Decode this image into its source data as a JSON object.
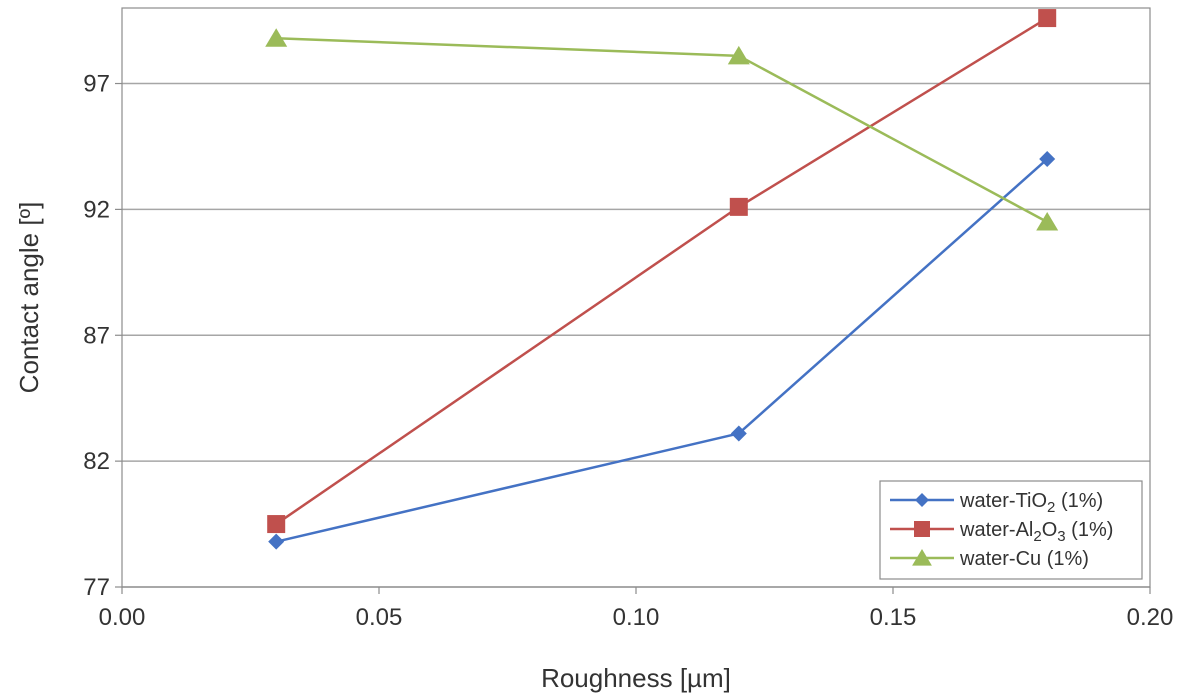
{
  "chart_data": {
    "type": "line",
    "title": "",
    "xlabel": "Roughness [µm]",
    "ylabel": "Contact angle [º]",
    "xlim": [
      0.0,
      0.2
    ],
    "ylim": [
      77,
      100
    ],
    "xticks": [
      0.0,
      0.05,
      0.1,
      0.15,
      0.2
    ],
    "xtick_labels": [
      "0.00",
      "0.05",
      "0.10",
      "0.15",
      "0.20"
    ],
    "yticks": [
      77,
      82,
      87,
      92,
      97
    ],
    "ytick_labels": [
      "77",
      "82",
      "87",
      "92",
      "97"
    ],
    "grid": "horizontal",
    "legend_position": "bottom-right",
    "series": [
      {
        "name": "water-TiO2 (1%)",
        "legend_parts": [
          {
            "text": "water-TiO",
            "sub": false
          },
          {
            "text": "2",
            "sub": true
          },
          {
            "text": " (1%)",
            "sub": false
          }
        ],
        "color": "#4472C4",
        "marker": "diamond",
        "x": [
          0.03,
          0.12,
          0.18
        ],
        "y": [
          78.8,
          83.1,
          94.0
        ]
      },
      {
        "name": "water-Al2O3 (1%)",
        "legend_parts": [
          {
            "text": "water-Al",
            "sub": false
          },
          {
            "text": "2",
            "sub": true
          },
          {
            "text": "O",
            "sub": false
          },
          {
            "text": "3",
            "sub": true
          },
          {
            "text": " (1%)",
            "sub": false
          }
        ],
        "color": "#C0504D",
        "marker": "square",
        "x": [
          0.03,
          0.12,
          0.18
        ],
        "y": [
          79.5,
          92.1,
          99.6
        ]
      },
      {
        "name": "water-Cu (1%)",
        "legend_parts": [
          {
            "text": "water-Cu (1%)",
            "sub": false
          }
        ],
        "color": "#9BBB59",
        "marker": "triangle",
        "x": [
          0.03,
          0.12,
          0.18
        ],
        "y": [
          98.8,
          98.1,
          91.5
        ]
      }
    ]
  }
}
